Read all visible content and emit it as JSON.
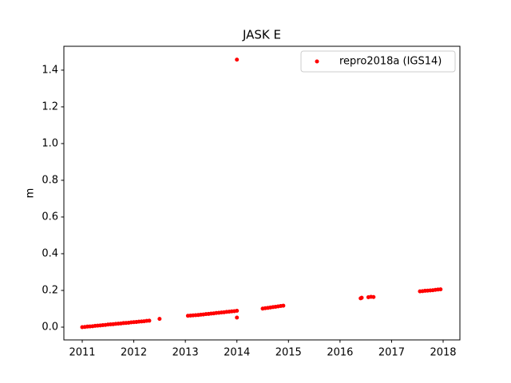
{
  "chart_data": {
    "type": "scatter",
    "title": "JASK E",
    "y_label": "m",
    "series": [
      {
        "name": "repro2018a (IGS14)",
        "color": "#ff0000",
        "x": [
          2011.0,
          2011.05,
          2011.1,
          2011.15,
          2011.2,
          2011.25,
          2011.3,
          2011.35,
          2011.4,
          2011.45,
          2011.5,
          2011.55,
          2011.6,
          2011.65,
          2011.7,
          2011.75,
          2011.8,
          2011.85,
          2011.9,
          2011.95,
          2012.0,
          2012.05,
          2012.1,
          2012.15,
          2012.2,
          2012.25,
          2012.3,
          2012.5,
          2013.05,
          2013.1,
          2013.15,
          2013.2,
          2013.25,
          2013.3,
          2013.35,
          2013.4,
          2013.45,
          2013.5,
          2013.55,
          2013.6,
          2013.65,
          2013.7,
          2013.75,
          2013.8,
          2013.85,
          2013.9,
          2013.95,
          2014.0,
          2014.0,
          2014.0,
          2014.5,
          2014.55,
          2014.6,
          2014.65,
          2014.7,
          2014.75,
          2014.8,
          2014.85,
          2014.9,
          2016.4,
          2016.42,
          2016.55,
          2016.6,
          2016.65,
          2017.55,
          2017.6,
          2017.65,
          2017.7,
          2017.75,
          2017.8,
          2017.85,
          2017.9,
          2017.95
        ],
        "values": [
          0.0,
          0.001,
          0.003,
          0.004,
          0.005,
          0.007,
          0.008,
          0.009,
          0.011,
          0.012,
          0.014,
          0.015,
          0.016,
          0.018,
          0.019,
          0.02,
          0.022,
          0.023,
          0.024,
          0.026,
          0.027,
          0.028,
          0.03,
          0.031,
          0.032,
          0.034,
          0.035,
          0.045,
          0.062,
          0.063,
          0.064,
          0.065,
          0.066,
          0.068,
          0.069,
          0.071,
          0.072,
          0.074,
          0.075,
          0.077,
          0.078,
          0.08,
          0.081,
          0.083,
          0.084,
          0.086,
          0.087,
          0.089,
          1.457,
          0.052,
          0.101,
          0.103,
          0.105,
          0.107,
          0.109,
          0.111,
          0.113,
          0.115,
          0.117,
          0.157,
          0.16,
          0.163,
          0.165,
          0.164,
          0.195,
          0.196,
          0.198,
          0.199,
          0.2,
          0.201,
          0.203,
          0.205,
          0.206
        ]
      }
    ],
    "xlim": [
      2010.644,
      2018.325
    ],
    "xticks": [
      2011,
      2012,
      2013,
      2014,
      2015,
      2016,
      2017,
      2018
    ],
    "ylim": [
      -0.0696,
      1.53
    ],
    "yticks": [
      {
        "value": 0,
        "label": "0.0"
      },
      0.2,
      0.4,
      0.6,
      0.8,
      {
        "value": 1,
        "label": "1.0"
      },
      1.2,
      1.4
    ],
    "grid": false,
    "legend_position": "upper right"
  }
}
